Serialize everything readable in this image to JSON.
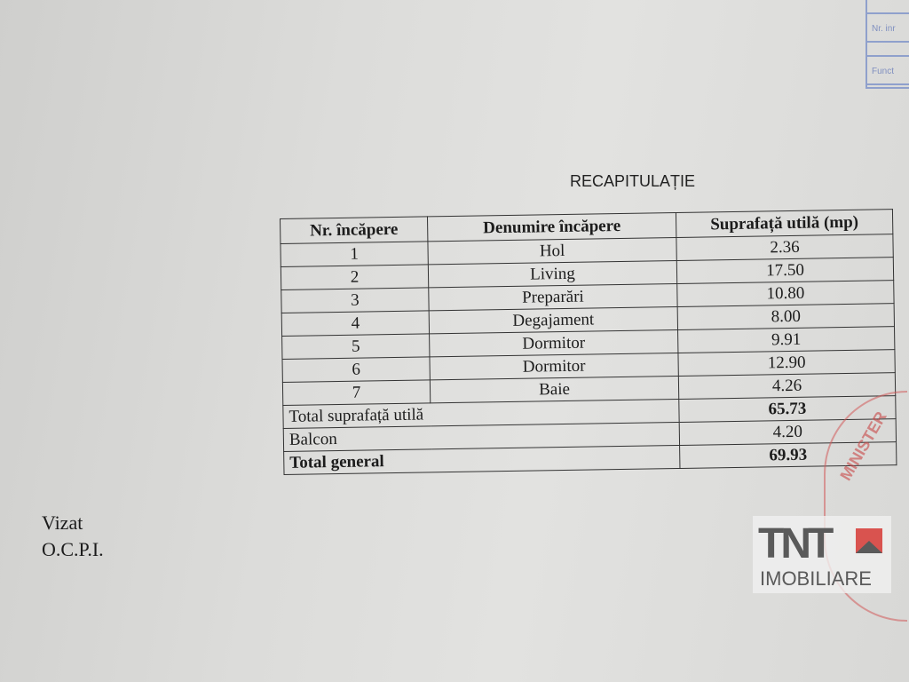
{
  "corner_form": {
    "row1": "Nr. inr",
    "row2": "Funct"
  },
  "title": "RECAPITULAȚIE",
  "table": {
    "headers": [
      "Nr. încăpere",
      "Denumire încăpere",
      "Suprafață utilă (mp)"
    ],
    "rows": [
      [
        "1",
        "Hol",
        "2.36"
      ],
      [
        "2",
        "Living",
        "17.50"
      ],
      [
        "3",
        "Preparări",
        "10.80"
      ],
      [
        "4",
        "Degajament",
        "8.00"
      ],
      [
        "5",
        "Dormitor",
        "9.91"
      ],
      [
        "6",
        "Dormitor",
        "12.90"
      ],
      [
        "7",
        "Baie",
        "4.26"
      ]
    ],
    "totals": [
      {
        "label": "Total suprafață utilă",
        "value": "65.73"
      },
      {
        "label": "Balcon",
        "value": "4.20"
      },
      {
        "label": "Total general",
        "value": "69.93"
      }
    ]
  },
  "vizat": {
    "line1": "Vizat",
    "line2": "O.C.P.I."
  },
  "seal": {
    "text": "MINISTER"
  },
  "watermark": {
    "brand": "TNT",
    "subtitle": "IMOBILIARE",
    "accent_color": "#d9534f"
  }
}
